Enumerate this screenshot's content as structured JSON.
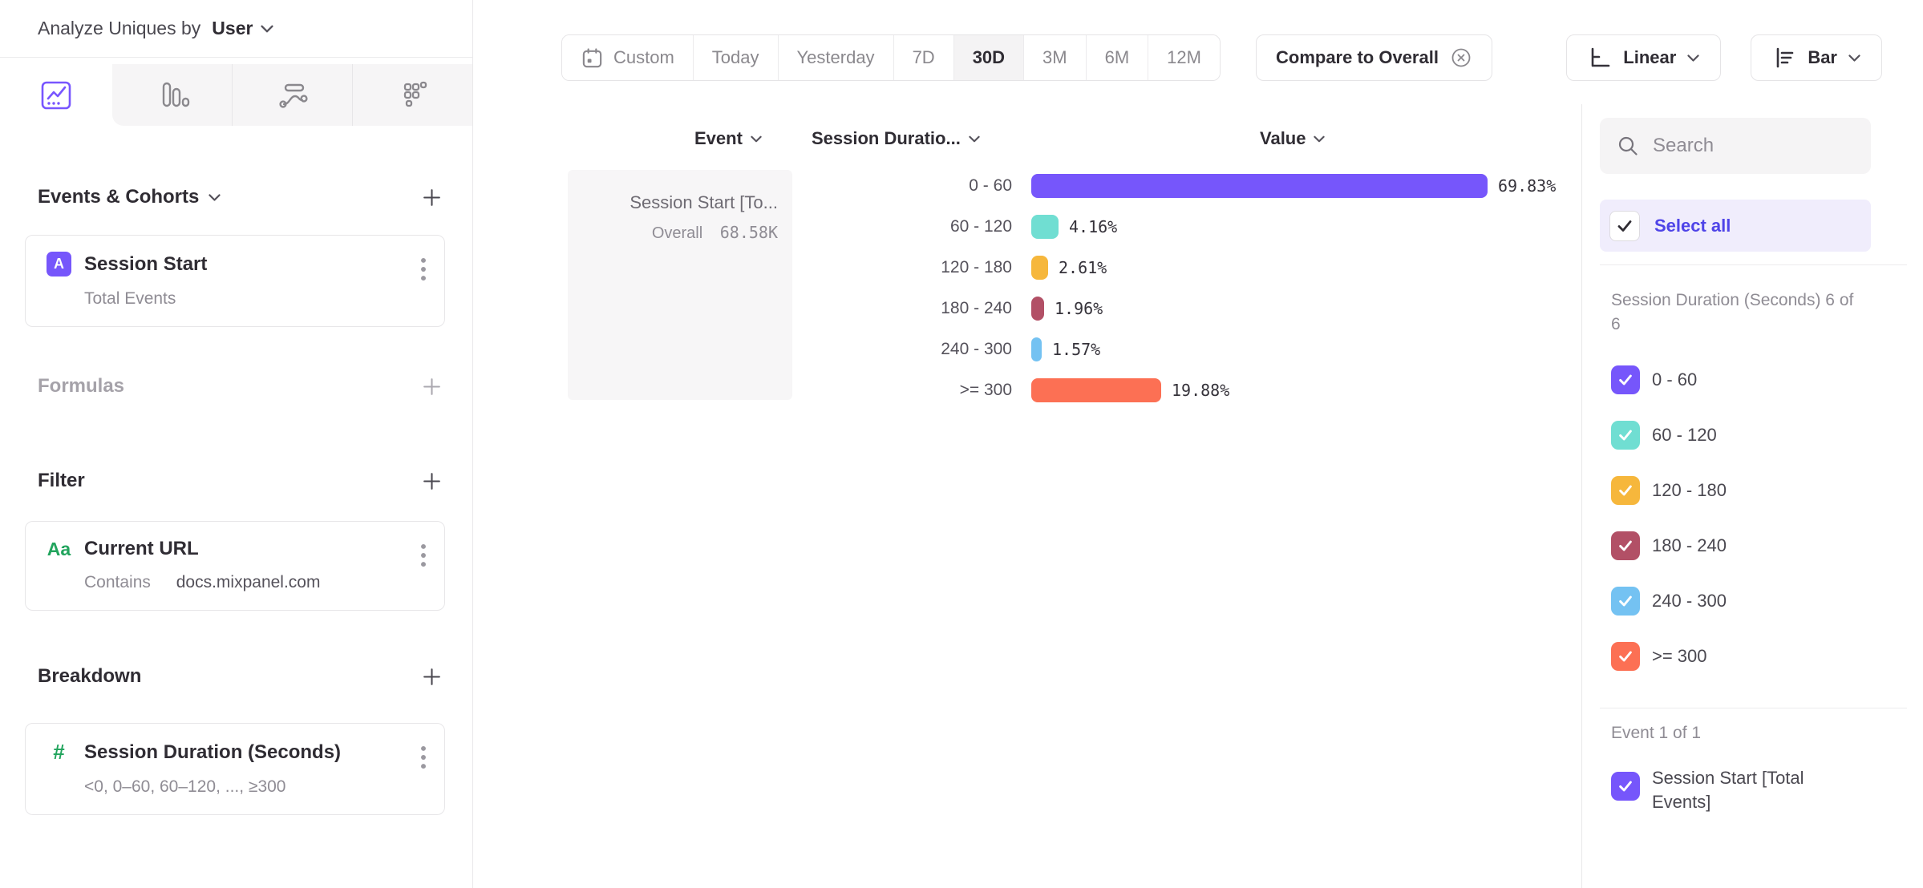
{
  "header": {
    "analyze_label": "Analyze Uniques by",
    "analyze_value": "User"
  },
  "sidebar": {
    "sections": {
      "events_title": "Events & Cohorts",
      "formulas_title": "Formulas",
      "filter_title": "Filter",
      "breakdown_title": "Breakdown"
    },
    "event_card": {
      "badge": "A",
      "title": "Session Start",
      "subtitle": "Total Events"
    },
    "filter_card": {
      "icon_text": "Aa",
      "title": "Current URL",
      "operator": "Contains",
      "value": "docs.mixpanel.com"
    },
    "breakdown_card": {
      "icon_text": "#",
      "title": "Session Duration (Seconds)",
      "subtitle": "<0, 0–60, 60–120, ..., ≥300"
    }
  },
  "toolbar": {
    "date_ranges": [
      "Custom",
      "Today",
      "Yesterday",
      "7D",
      "30D",
      "3M",
      "6M",
      "12M"
    ],
    "active_range": "30D",
    "compare_label": "Compare to Overall",
    "scale_label": "Linear",
    "chart_type_label": "Bar"
  },
  "chart": {
    "columns": {
      "event": "Event",
      "breakdown": "Session Duratio...",
      "value": "Value"
    },
    "event_card": {
      "title": "Session Start [To...",
      "overall_label": "Overall",
      "overall_value": "68.58K"
    },
    "chart_data": {
      "type": "bar",
      "orientation": "horizontal",
      "series_name": "Session Start [Total Events]",
      "overall_value": "68.58K",
      "categories": [
        "0 - 60",
        "60 - 120",
        "120 - 180",
        "180 - 240",
        "240 - 300",
        ">= 300"
      ],
      "values_pct": [
        69.83,
        4.16,
        2.61,
        1.96,
        1.57,
        19.88
      ],
      "value_labels": [
        "69.83%",
        "4.16%",
        "2.61%",
        "1.96%",
        "1.57%",
        "19.88%"
      ],
      "colors": [
        "#7656FB",
        "#70DED2",
        "#F6B73C",
        "#B25066",
        "#74C2F2",
        "#FC7054"
      ]
    },
    "rows": [
      {
        "label": "0 - 60",
        "value": "69.83%",
        "pct": 69.83,
        "color": "#7656FB"
      },
      {
        "label": "60 - 120",
        "value": "4.16%",
        "pct": 4.16,
        "color": "#70DED2"
      },
      {
        "label": "120 - 180",
        "value": "2.61%",
        "pct": 2.61,
        "color": "#F6B73C"
      },
      {
        "label": "180 - 240",
        "value": "1.96%",
        "pct": 1.96,
        "color": "#B25066"
      },
      {
        "label": "240 - 300",
        "value": "1.57%",
        "pct": 1.57,
        "color": "#74C2F2"
      },
      {
        "label": ">= 300",
        "value": "19.88%",
        "pct": 19.88,
        "color": "#FC7054"
      }
    ]
  },
  "panel": {
    "search_placeholder": "Search",
    "select_all_label": "Select all",
    "breakdown_group_label": "Session Duration (Seconds) 6 of 6",
    "breakdown_items": [
      {
        "label": "0 - 60",
        "color": "#7656FB",
        "checked": true
      },
      {
        "label": "60 - 120",
        "color": "#70DED2",
        "checked": true
      },
      {
        "label": "120 - 180",
        "color": "#F6B73C",
        "checked": true
      },
      {
        "label": "180 - 240",
        "color": "#B25066",
        "checked": true
      },
      {
        "label": "240 - 300",
        "color": "#74C2F2",
        "checked": true
      },
      {
        "label": ">= 300",
        "color": "#FC7054",
        "checked": true
      }
    ],
    "event_group_label": "Event 1 of 1",
    "event_items": [
      {
        "label": "Session Start [Total Events]",
        "color": "#7656FB",
        "checked": true
      }
    ]
  },
  "colors": {
    "accent_purple": "#7656FB",
    "select_all_text": "#4F44E8",
    "green_property_icon": "#22A45D",
    "inactive_tab_bg": "#F6F5F6",
    "active_segment_bg": "#F4F3F4"
  },
  "icons": {
    "analyze_dropdown": "chevron-down",
    "tab_1": "line-chart",
    "tab_2": "bar-chart",
    "tab_3": "flow",
    "tab_4": "metrics-grid",
    "custom_range": "calendar",
    "compare_remove": "circle-x",
    "scale": "linear-axis",
    "chart_type": "horizontal-bars",
    "search": "magnifier",
    "card_menu": "kebab",
    "add": "plus",
    "checked": "checkmark"
  }
}
